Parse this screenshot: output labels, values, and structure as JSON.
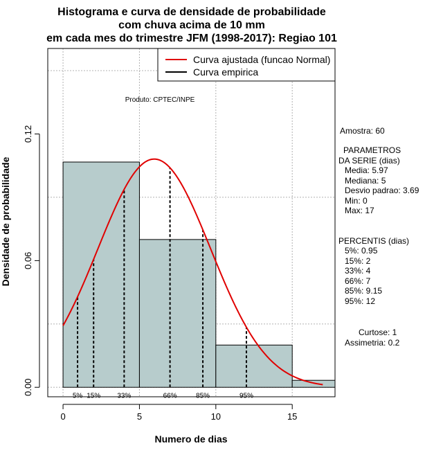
{
  "chart_data": {
    "type": "histogram",
    "title_lines": [
      "Histograma e curva de densidade de probabilidade",
      "com chuva acima de 10 mm",
      "em cada mes do trimestre JFM (1998-2017): Regiao 101"
    ],
    "xlabel": "Numero de dias",
    "ylabel": "Densidade de probabilidade",
    "xlim": [
      -1,
      17.8
    ],
    "ylim": [
      -0.0045,
      0.1605
    ],
    "x_ticks": [
      0,
      5,
      10,
      15
    ],
    "y_ticks": [
      0.0,
      0.06,
      0.12
    ],
    "x_tick_labels": [
      "0",
      "5",
      "10",
      "15"
    ],
    "y_tick_labels": [
      "0.00",
      "0.06",
      "0.12"
    ],
    "grid": true,
    "bars": [
      {
        "x0": 0,
        "x1": 5,
        "density": 0.1067
      },
      {
        "x0": 5,
        "x1": 10,
        "density": 0.07
      },
      {
        "x0": 10,
        "x1": 15,
        "density": 0.02
      },
      {
        "x0": 15,
        "x1": 17.8,
        "density": 0.0033
      }
    ],
    "fitted_curve": {
      "name": "Curva ajustada (funcao Normal)",
      "mean": 5.97,
      "sd": 3.69,
      "x_from": 0,
      "x_to": 17,
      "color": "#e00000"
    },
    "empirical_curve": {
      "name": "Curva empirica",
      "color": "#000000"
    },
    "percentile_lines": [
      {
        "x": 0.95,
        "label": "5%"
      },
      {
        "x": 2,
        "label": "15%"
      },
      {
        "x": 4,
        "label": "33%"
      },
      {
        "x": 7,
        "label": "66%"
      },
      {
        "x": 9.15,
        "label": "85%"
      },
      {
        "x": 12,
        "label": "95%"
      }
    ],
    "legend": {
      "position": "top-right",
      "entries": [
        {
          "label": "Curva ajustada (funcao Normal)",
          "color": "#e00000"
        },
        {
          "label": "Curva empirica",
          "color": "#000000"
        }
      ]
    },
    "credit": "Produto: CPTEC/INPE",
    "colors": {
      "bar_fill": "#b7cccc",
      "bar_stroke": "#000000",
      "grid": "#b0b0b0"
    }
  },
  "side_panel": {
    "amostra": "Amostra: 60",
    "parametros_title_1": "PARAMETROS",
    "parametros_title_2": "DA SERIE (dias)",
    "media": "Media: 5.97",
    "mediana": "Mediana: 5",
    "desvio": "Desvio padrao: 3.69",
    "min": "Min: 0",
    "max": "Max: 17",
    "percentis_title": "PERCENTIS (dias)",
    "p5": "5%: 0.95",
    "p15": "15%: 2",
    "p33": "33%: 4",
    "p66": "66%: 7",
    "p85": "85%: 9.15",
    "p95": "95%: 12",
    "curtose": "Curtose: 1",
    "assimetria": "Assimetria: 0.2"
  }
}
